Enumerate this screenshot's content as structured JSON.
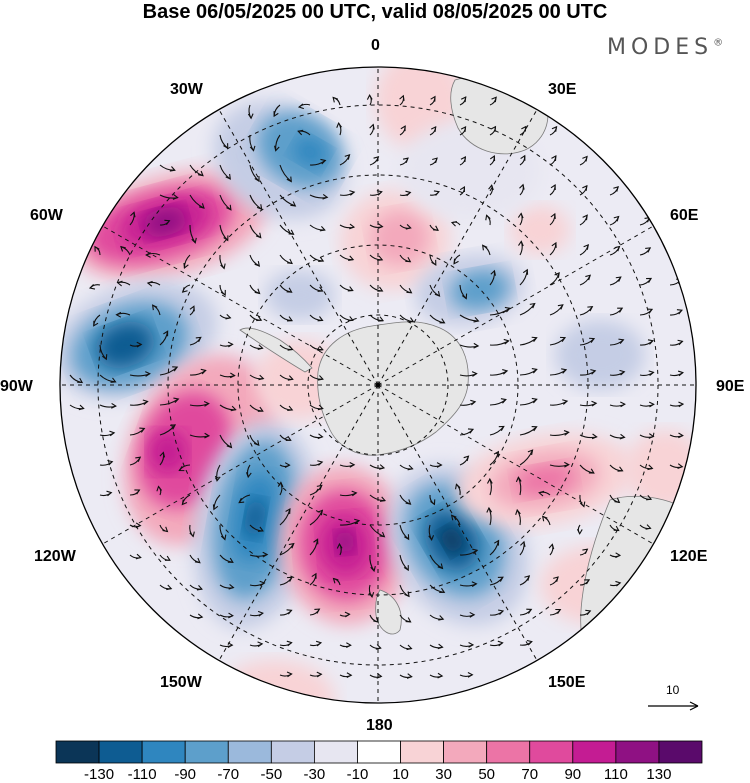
{
  "title": "Base 06/05/2025 00 UTC, valid 08/05/2025 00 UTC",
  "brand": {
    "name": "MODES",
    "mark": "®"
  },
  "map": {
    "projection": "polar-stereographic-south",
    "longitude_labels": [
      "0",
      "30E",
      "60E",
      "90E",
      "120E",
      "150E",
      "180",
      "150W",
      "120W",
      "90W",
      "60W",
      "30W"
    ],
    "reference_vector": "10",
    "colors": {
      "land": "#e6e6e6",
      "coast": "#7a7a7a",
      "grid": "#111111",
      "arrows": "#111111"
    }
  },
  "legend": {
    "tick_labels": [
      "-130",
      "-110",
      "-90",
      "-70",
      "-50",
      "-30",
      "-10",
      "10",
      "30",
      "50",
      "70",
      "90",
      "110",
      "130"
    ],
    "colors": [
      "#0b3557",
      "#0e5c92",
      "#2f86bf",
      "#5d9fcb",
      "#9bb9dc",
      "#c5cde5",
      "#e7e6f1",
      "#ffffff",
      "#f8d3d6",
      "#f3a9bc",
      "#ec74a6",
      "#e04a9d",
      "#c41c93",
      "#8f1183",
      "#5a0a6b"
    ]
  }
}
